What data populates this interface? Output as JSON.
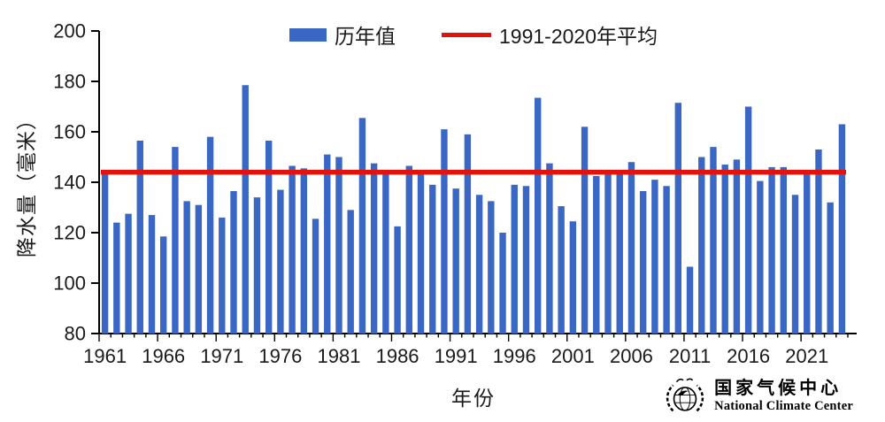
{
  "chart_data": {
    "type": "bar",
    "series_name": "历年值",
    "average_line": {
      "label": "1991-2020年平均",
      "value": 144
    },
    "ylabel": "降水量（毫米）",
    "xlabel": "年份",
    "ylim": [
      80,
      200
    ],
    "ytick_step": 20,
    "xtick_labels": [
      1961,
      1966,
      1971,
      1976,
      1981,
      1986,
      1991,
      1996,
      2001,
      2006,
      2011,
      2016,
      2021
    ],
    "grid": false,
    "legend_position": "top-center",
    "bar_color": "#3b67c4",
    "line_color": "#e3120b",
    "axis_color": "#000000",
    "years": [
      1961,
      1962,
      1963,
      1964,
      1965,
      1966,
      1967,
      1968,
      1969,
      1970,
      1971,
      1972,
      1973,
      1974,
      1975,
      1976,
      1977,
      1978,
      1979,
      1980,
      1981,
      1982,
      1983,
      1984,
      1985,
      1986,
      1987,
      1988,
      1989,
      1990,
      1991,
      1992,
      1993,
      1994,
      1995,
      1996,
      1997,
      1998,
      1999,
      2000,
      2001,
      2002,
      2003,
      2004,
      2005,
      2006,
      2007,
      2008,
      2009,
      2010,
      2011,
      2012,
      2013,
      2014,
      2015,
      2016,
      2017,
      2018,
      2019,
      2020,
      2021,
      2022,
      2023,
      2024
    ],
    "values": [
      143.5,
      124,
      127.5,
      156.5,
      127,
      118.5,
      154,
      132.5,
      131,
      158,
      126,
      136.5,
      178.5,
      134,
      156.5,
      137,
      146.5,
      145.5,
      125.5,
      151,
      150,
      129,
      165.5,
      147.5,
      143.5,
      122.5,
      146.5,
      143.5,
      139,
      161,
      137.5,
      159,
      135,
      132.5,
      120,
      139,
      138.5,
      173.5,
      147.5,
      130.5,
      124.5,
      162,
      142.5,
      144.5,
      143.5,
      148,
      136.5,
      141,
      138.5,
      171.5,
      106.5,
      150,
      154,
      147,
      149,
      170,
      140.5,
      146,
      146,
      135,
      144,
      153,
      132,
      163
    ]
  },
  "footer_logo": {
    "name_cn": "国家气候中心",
    "name_en": "National Climate Center"
  }
}
